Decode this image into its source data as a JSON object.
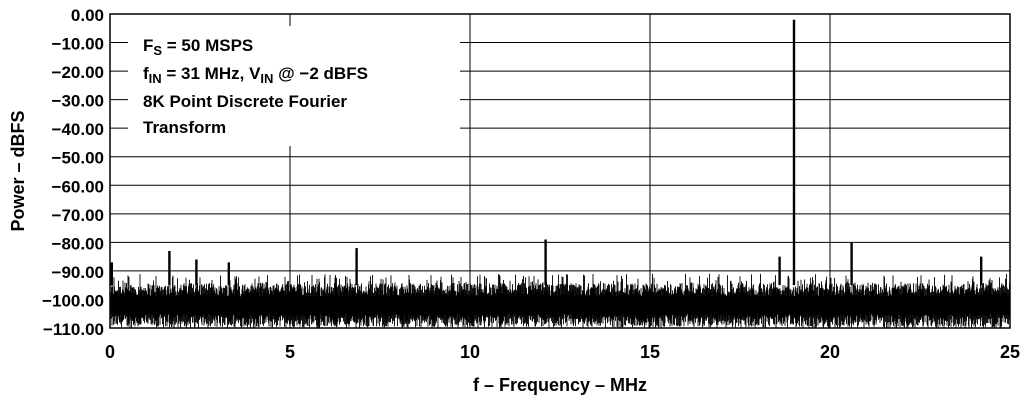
{
  "chart_data": {
    "type": "line",
    "title": "",
    "xlabel": "f – Frequency – MHz",
    "ylabel": "Power – dBFS",
    "xlim": [
      0,
      25
    ],
    "ylim": [
      -110,
      0
    ],
    "x_ticks": [
      "0",
      "5",
      "10",
      "15",
      "20",
      "25"
    ],
    "y_ticks": [
      "0.00",
      "−10.00",
      "−20.00",
      "−30.00",
      "−40.00",
      "−50.00",
      "−60.00",
      "−70.00",
      "−80.00",
      "−90.00",
      "−100.00",
      "−110.00"
    ],
    "grid": true,
    "annotations": {
      "line1_main": "F",
      "line1_sub": "S",
      "line1_rest": " = 50 MSPS",
      "line2_a": "f",
      "line2_a_sub": "IN",
      "line2_b": " = 31 MHz, V",
      "line2_b_sub": "IN",
      "line2_c": " @ −2 dBFS",
      "line3": "8K Point Discrete Fourier",
      "line4": "Transform"
    },
    "noise_floor": [
      -110,
      -91
    ],
    "spurs": [
      {
        "x": 0.05,
        "y": -87
      },
      {
        "x": 1.65,
        "y": -83
      },
      {
        "x": 2.4,
        "y": -86
      },
      {
        "x": 3.3,
        "y": -87
      },
      {
        "x": 6.85,
        "y": -82
      },
      {
        "x": 12.1,
        "y": -79
      },
      {
        "x": 18.6,
        "y": -85
      },
      {
        "x": 19.0,
        "y": -2
      },
      {
        "x": 20.6,
        "y": -80
      },
      {
        "x": 24.2,
        "y": -85
      }
    ]
  }
}
